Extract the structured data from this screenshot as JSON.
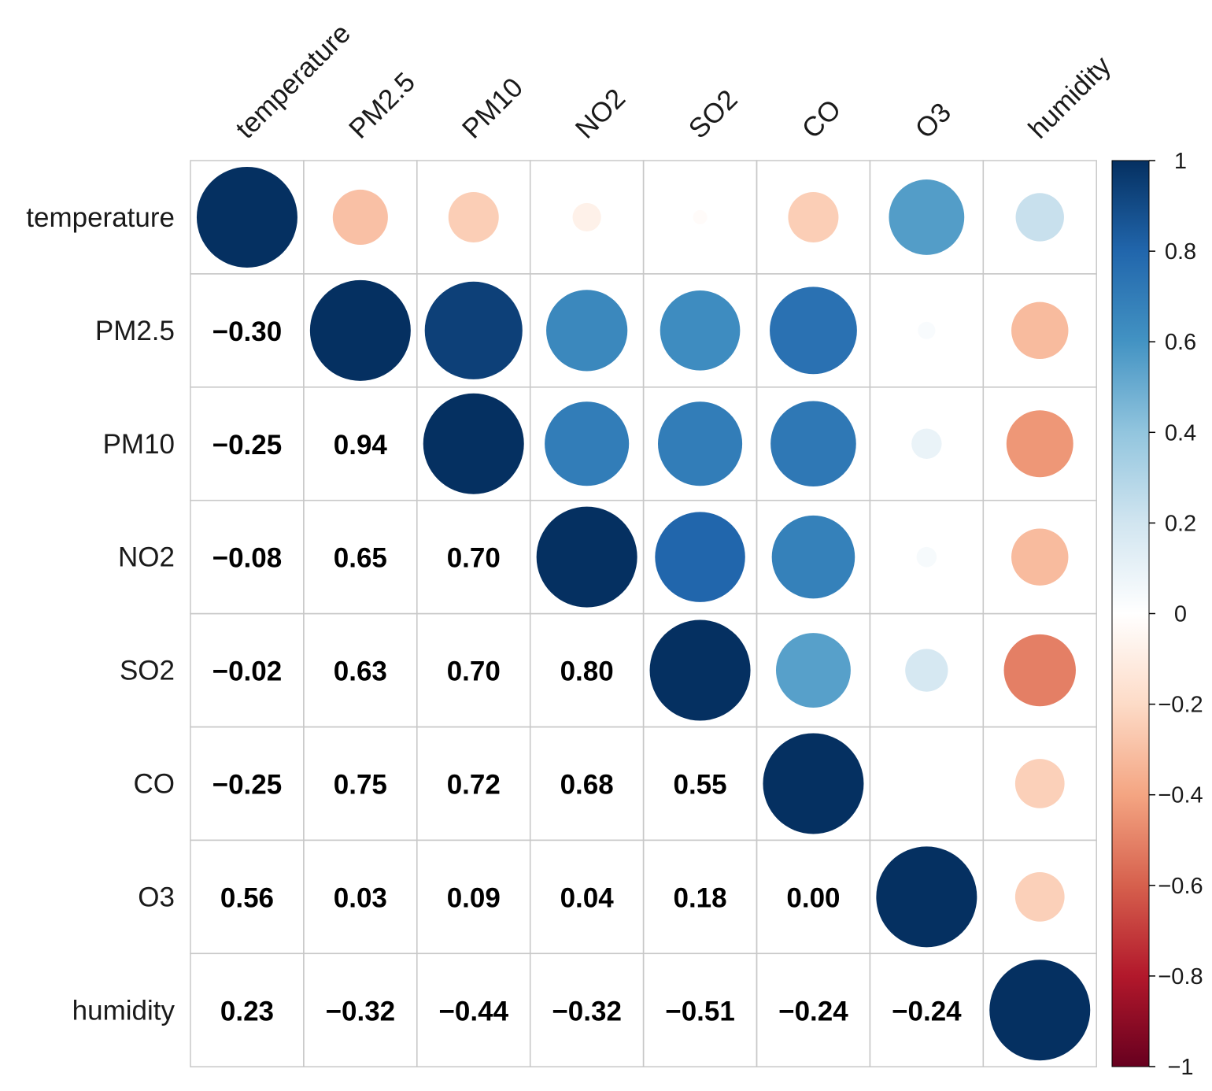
{
  "chart_data": {
    "type": "heatmap",
    "subtype": "correlation-matrix (circles upper, numbers lower)",
    "variables": [
      "temperature",
      "PM2.5",
      "PM10",
      "NO2",
      "SO2",
      "CO",
      "O3",
      "humidity"
    ],
    "matrix": [
      [
        1.0,
        -0.3,
        -0.25,
        -0.08,
        -0.02,
        -0.25,
        0.56,
        0.23
      ],
      [
        -0.3,
        1.0,
        0.94,
        0.65,
        0.63,
        0.75,
        0.03,
        -0.32
      ],
      [
        -0.25,
        0.94,
        1.0,
        0.7,
        0.7,
        0.72,
        0.09,
        -0.44
      ],
      [
        -0.08,
        0.65,
        0.7,
        1.0,
        0.8,
        0.68,
        0.04,
        -0.32
      ],
      [
        -0.02,
        0.63,
        0.7,
        0.8,
        1.0,
        0.55,
        0.18,
        -0.51
      ],
      [
        -0.25,
        0.75,
        0.72,
        0.68,
        0.55,
        1.0,
        0.0,
        -0.24
      ],
      [
        0.56,
        0.03,
        0.09,
        0.04,
        0.18,
        0.0,
        1.0,
        -0.24
      ],
      [
        0.23,
        -0.32,
        -0.44,
        -0.32,
        -0.51,
        -0.24,
        -0.24,
        1.0
      ]
    ],
    "lower_labels": [
      [
        "",
        "",
        "",
        "",
        "",
        "",
        "",
        ""
      ],
      [
        "−0.30",
        "",
        "",
        "",
        "",
        "",
        "",
        ""
      ],
      [
        "−0.25",
        "0.94",
        "",
        "",
        "",
        "",
        "",
        ""
      ],
      [
        "−0.08",
        "0.65",
        "0.70",
        "",
        "",
        "",
        "",
        ""
      ],
      [
        "−0.02",
        "0.63",
        "0.70",
        "0.80",
        "",
        "",
        "",
        ""
      ],
      [
        "−0.25",
        "0.75",
        "0.72",
        "0.68",
        "0.55",
        "",
        "",
        ""
      ],
      [
        "0.56",
        "0.03",
        "0.09",
        "0.04",
        "0.18",
        "0.00",
        "",
        ""
      ],
      [
        "0.23",
        "−0.32",
        "−0.44",
        "−0.32",
        "−0.51",
        "−0.24",
        "−0.24",
        ""
      ]
    ],
    "color_scale": {
      "range": [
        -1,
        1
      ],
      "ticks": [
        1,
        0.8,
        0.6,
        0.4,
        0.2,
        0,
        -0.2,
        -0.4,
        -0.6,
        -0.8,
        -1
      ],
      "tick_labels": [
        "1",
        "0.8",
        "0.6",
        "0.4",
        "0.2",
        "0",
        "−0.2",
        "−0.4",
        "−0.6",
        "−0.8",
        "−1"
      ],
      "colors": [
        "#67001F",
        "#B2182B",
        "#D6604D",
        "#F4A582",
        "#FDDBC7",
        "#FFFFFF",
        "#D1E5F0",
        "#92C5DE",
        "#4393C3",
        "#2166AC",
        "#053061"
      ]
    },
    "legend_position": "right",
    "grid": true
  }
}
